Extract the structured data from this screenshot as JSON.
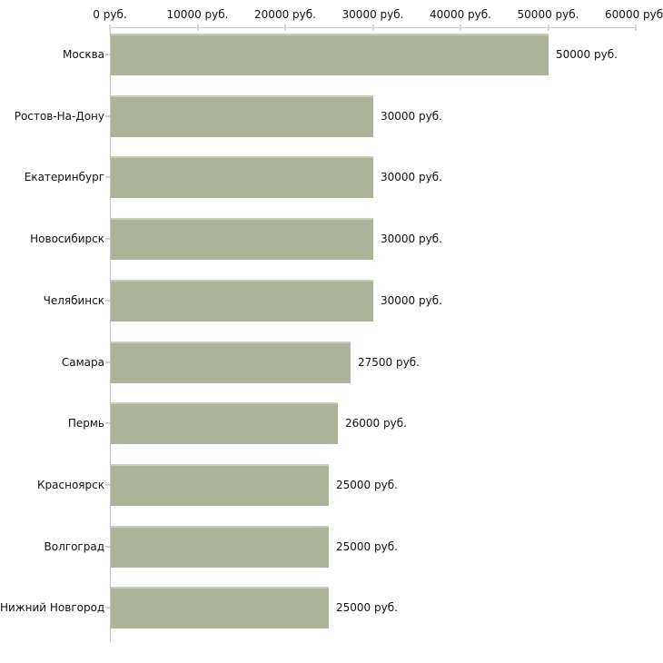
{
  "chart_data": {
    "type": "bar",
    "orientation": "horizontal",
    "title": "",
    "xlabel": "",
    "ylabel": "",
    "unit": "руб.",
    "xlim": [
      0,
      60000
    ],
    "grid": false,
    "legend": false,
    "categories": [
      "Москва",
      "Ростов-На-Дону",
      "Екатеринбург",
      "Новосибирск",
      "Челябинск",
      "Самара",
      "Пермь",
      "Красноярск",
      "Волгоград",
      "Нижний Новгород"
    ],
    "values": [
      50000,
      30000,
      30000,
      30000,
      30000,
      27500,
      26000,
      25000,
      25000,
      25000
    ],
    "value_labels": [
      "50000 руб.",
      "30000 руб.",
      "30000 руб.",
      "30000 руб.",
      "30000 руб.",
      "27500 руб.",
      "26000 руб.",
      "25000 руб.",
      "25000 руб.",
      "25000 руб."
    ],
    "x_ticks": [
      0,
      10000,
      20000,
      30000,
      40000,
      50000,
      60000
    ],
    "x_tick_labels": [
      "0 руб.",
      "10000 руб.",
      "20000 руб.",
      "30000 руб.",
      "40000 руб.",
      "50000 руб.",
      "60000 руб."
    ],
    "colors": {
      "bar_fill": "#abb499",
      "bar_top_edge": "#c8ceb6",
      "axis_line": "#c6c6c6",
      "x_tick": "#dadcbe",
      "category_tick": "#d8d0c3",
      "text": "#111111",
      "background": "#ffffff"
    }
  }
}
